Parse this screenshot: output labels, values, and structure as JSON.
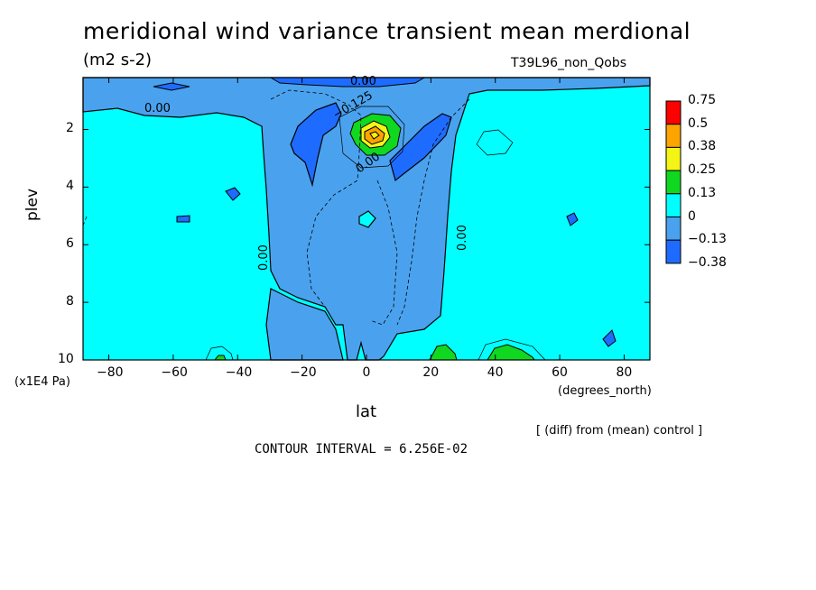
{
  "title": "meridional wind variance transient mean merdional",
  "units": "(m2 s-2)",
  "run_label": "T39L96_non_Qobs",
  "diff_note": "[ (diff) from (mean) control ]",
  "contour_interval": "CONTOUR INTERVAL = 6.256E-02",
  "colors": {
    "neg_038": "#1e6cff",
    "neg_013": "#4aa2ee",
    "zero": "#00ffff",
    "pos_013": "#10d820",
    "pos_025": "#f4f416",
    "pos_038": "#fca400",
    "pos_075": "#ff0000"
  },
  "chart_data": {
    "type": "heatmap",
    "title": "meridional wind variance transient mean merdional",
    "subtitle": "(m2 s-2)",
    "xlabel": "lat",
    "x_unit": "(degrees_north)",
    "ylabel": "plev",
    "y_unit": "(x1E4 Pa)",
    "xlim": [
      -88,
      88
    ],
    "ylim": [
      10,
      0.2
    ],
    "x_ticks": [
      "-80",
      "-60",
      "-40",
      "-20",
      "0",
      "20",
      "40",
      "60",
      "80"
    ],
    "y_ticks": [
      "2",
      "4",
      "6",
      "8",
      "10"
    ],
    "legend": {
      "placement": "right",
      "labels": [
        "0.75",
        "0.5",
        "0.38",
        "0.25",
        "0.13",
        "0",
        "-0.13",
        "-0.38"
      ],
      "levels": [
        0.75,
        0.5,
        0.38,
        0.25,
        0.13,
        0,
        -0.13,
        -0.38
      ]
    },
    "contour_labels": [
      "0.00",
      "0.00",
      "-0.125",
      "0.00",
      "0.00",
      "0.00"
    ],
    "features": [
      {
        "name": "positive maximum",
        "lat": 2,
        "plev": 2.1,
        "value": 0.5
      },
      {
        "name": "negative region NH",
        "lat": 20,
        "plev": 2.3,
        "value": -0.15
      },
      {
        "name": "negative region SH",
        "lat": -15,
        "plev": 2.2,
        "value": -0.15
      },
      {
        "name": "negative band",
        "lat": 0,
        "plev": 6,
        "value": -0.05
      },
      {
        "name": "positive surface NH",
        "lat": 45,
        "plev": 9.9,
        "value": 0.15
      },
      {
        "name": "positive surface NH subtropics",
        "lat": 28,
        "plev": 9.9,
        "value": 0.13
      }
    ]
  }
}
